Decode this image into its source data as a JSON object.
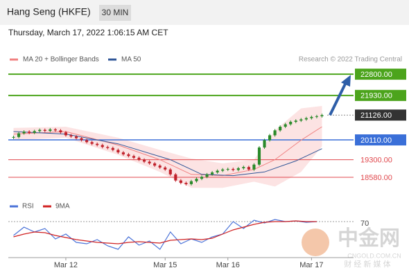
{
  "chart_data": {
    "type": "candlestick",
    "title": "Hang Seng (HKFE)",
    "interval": "30 MIN",
    "subtitle": "Thursday, March 17, 2022 1:06:15 AM CET",
    "source": "Research © 2022 Trading Central",
    "watermark": [
      "中金网",
      "CNGOLD.COM.CN",
      "财 经 新 媒 体"
    ],
    "xlim": [
      -1,
      60
    ],
    "xticks": [
      {
        "value": 10,
        "label": "Mar 12"
      },
      {
        "value": 29,
        "label": "Mar 15"
      },
      {
        "value": 41,
        "label": "Mar 16"
      },
      {
        "value": 57,
        "label": "Mar 17"
      }
    ],
    "ylim": [
      18000,
      23200
    ],
    "closes": [
      20230,
      20380,
      20450,
      20400,
      20470,
      20520,
      20480,
      20540,
      20500,
      20420,
      20300,
      20250,
      20180,
      20100,
      20020,
      19950,
      19900,
      19820,
      19780,
      19700,
      19600,
      19520,
      19450,
      19380,
      19300,
      19220,
      19150,
      19060,
      18980,
      18900,
      18700,
      18450,
      18350,
      18300,
      18420,
      18520,
      18600,
      18700,
      18780,
      18850,
      18900,
      18920,
      18880,
      18950,
      19000,
      18900,
      19100,
      19800,
      20100,
      20300,
      20500,
      20650,
      20750,
      20850,
      20900,
      20950,
      21000,
      21050,
      21080,
      21126
    ],
    "up_color": "#2a8a2a",
    "down_color": "#c0202a",
    "levels": [
      {
        "value": 22800,
        "label": "22800.00",
        "color": "#4ca41c",
        "style": "box"
      },
      {
        "value": 21930,
        "label": "21930.00",
        "color": "#4ca41c",
        "style": "box"
      },
      {
        "value": 21126,
        "label": "21126.00",
        "color": "#333333",
        "style": "last"
      },
      {
        "value": 20110,
        "label": "20110.00",
        "color": "#3a6fd8",
        "style": "box"
      },
      {
        "value": 19300,
        "label": "19300.00",
        "color": "#e0474c",
        "style": "text"
      },
      {
        "value": 18580,
        "label": "18580.00",
        "color": "#e0474c",
        "style": "text"
      }
    ],
    "series": [
      {
        "name": "MA 20 + Bollinger Bands",
        "color": "#f08080",
        "x": [
          0,
          10,
          20,
          28,
          34,
          40,
          46,
          50,
          55,
          59
        ],
        "values": [
          20350,
          20450,
          19900,
          19300,
          18700,
          18650,
          18900,
          19300,
          20100,
          20650
        ],
        "upper": [
          20600,
          20650,
          20200,
          19700,
          19350,
          19150,
          19300,
          20500,
          21400,
          21500
        ],
        "lower": [
          20100,
          20200,
          19500,
          18800,
          18150,
          18150,
          18400,
          18200,
          18800,
          19850
        ]
      },
      {
        "name": "MA 50",
        "color": "#2f5597",
        "x": [
          0,
          10,
          20,
          30,
          36,
          42,
          48,
          54,
          59
        ],
        "values": [
          20450,
          20350,
          19950,
          19300,
          18700,
          18650,
          18800,
          19250,
          19750
        ]
      }
    ],
    "rsi": {
      "ylim": [
        20,
        80
      ],
      "yticks": [
        70
      ],
      "x": [
        0,
        2,
        4,
        6,
        8,
        10,
        12,
        14,
        16,
        18,
        20,
        22,
        24,
        26,
        28,
        30,
        32,
        34,
        36,
        38,
        40,
        42,
        44,
        46,
        48,
        50,
        52,
        54,
        56,
        58
      ],
      "series": [
        {
          "name": "RSI",
          "color": "#4a72d8",
          "values": [
            50,
            62,
            55,
            60,
            45,
            52,
            40,
            38,
            44,
            35,
            30,
            48,
            36,
            42,
            30,
            55,
            38,
            45,
            40,
            48,
            52,
            70,
            60,
            72,
            68,
            73,
            70,
            71,
            69,
            70
          ]
        },
        {
          "name": "9MA",
          "color": "#d02020",
          "values": [
            48,
            52,
            55,
            54,
            50,
            47,
            44,
            42,
            40,
            39,
            38,
            40,
            41,
            40,
            39,
            43,
            44,
            45,
            44,
            46,
            52,
            58,
            62,
            66,
            69,
            70,
            70,
            71,
            70,
            70
          ]
        }
      ]
    }
  }
}
